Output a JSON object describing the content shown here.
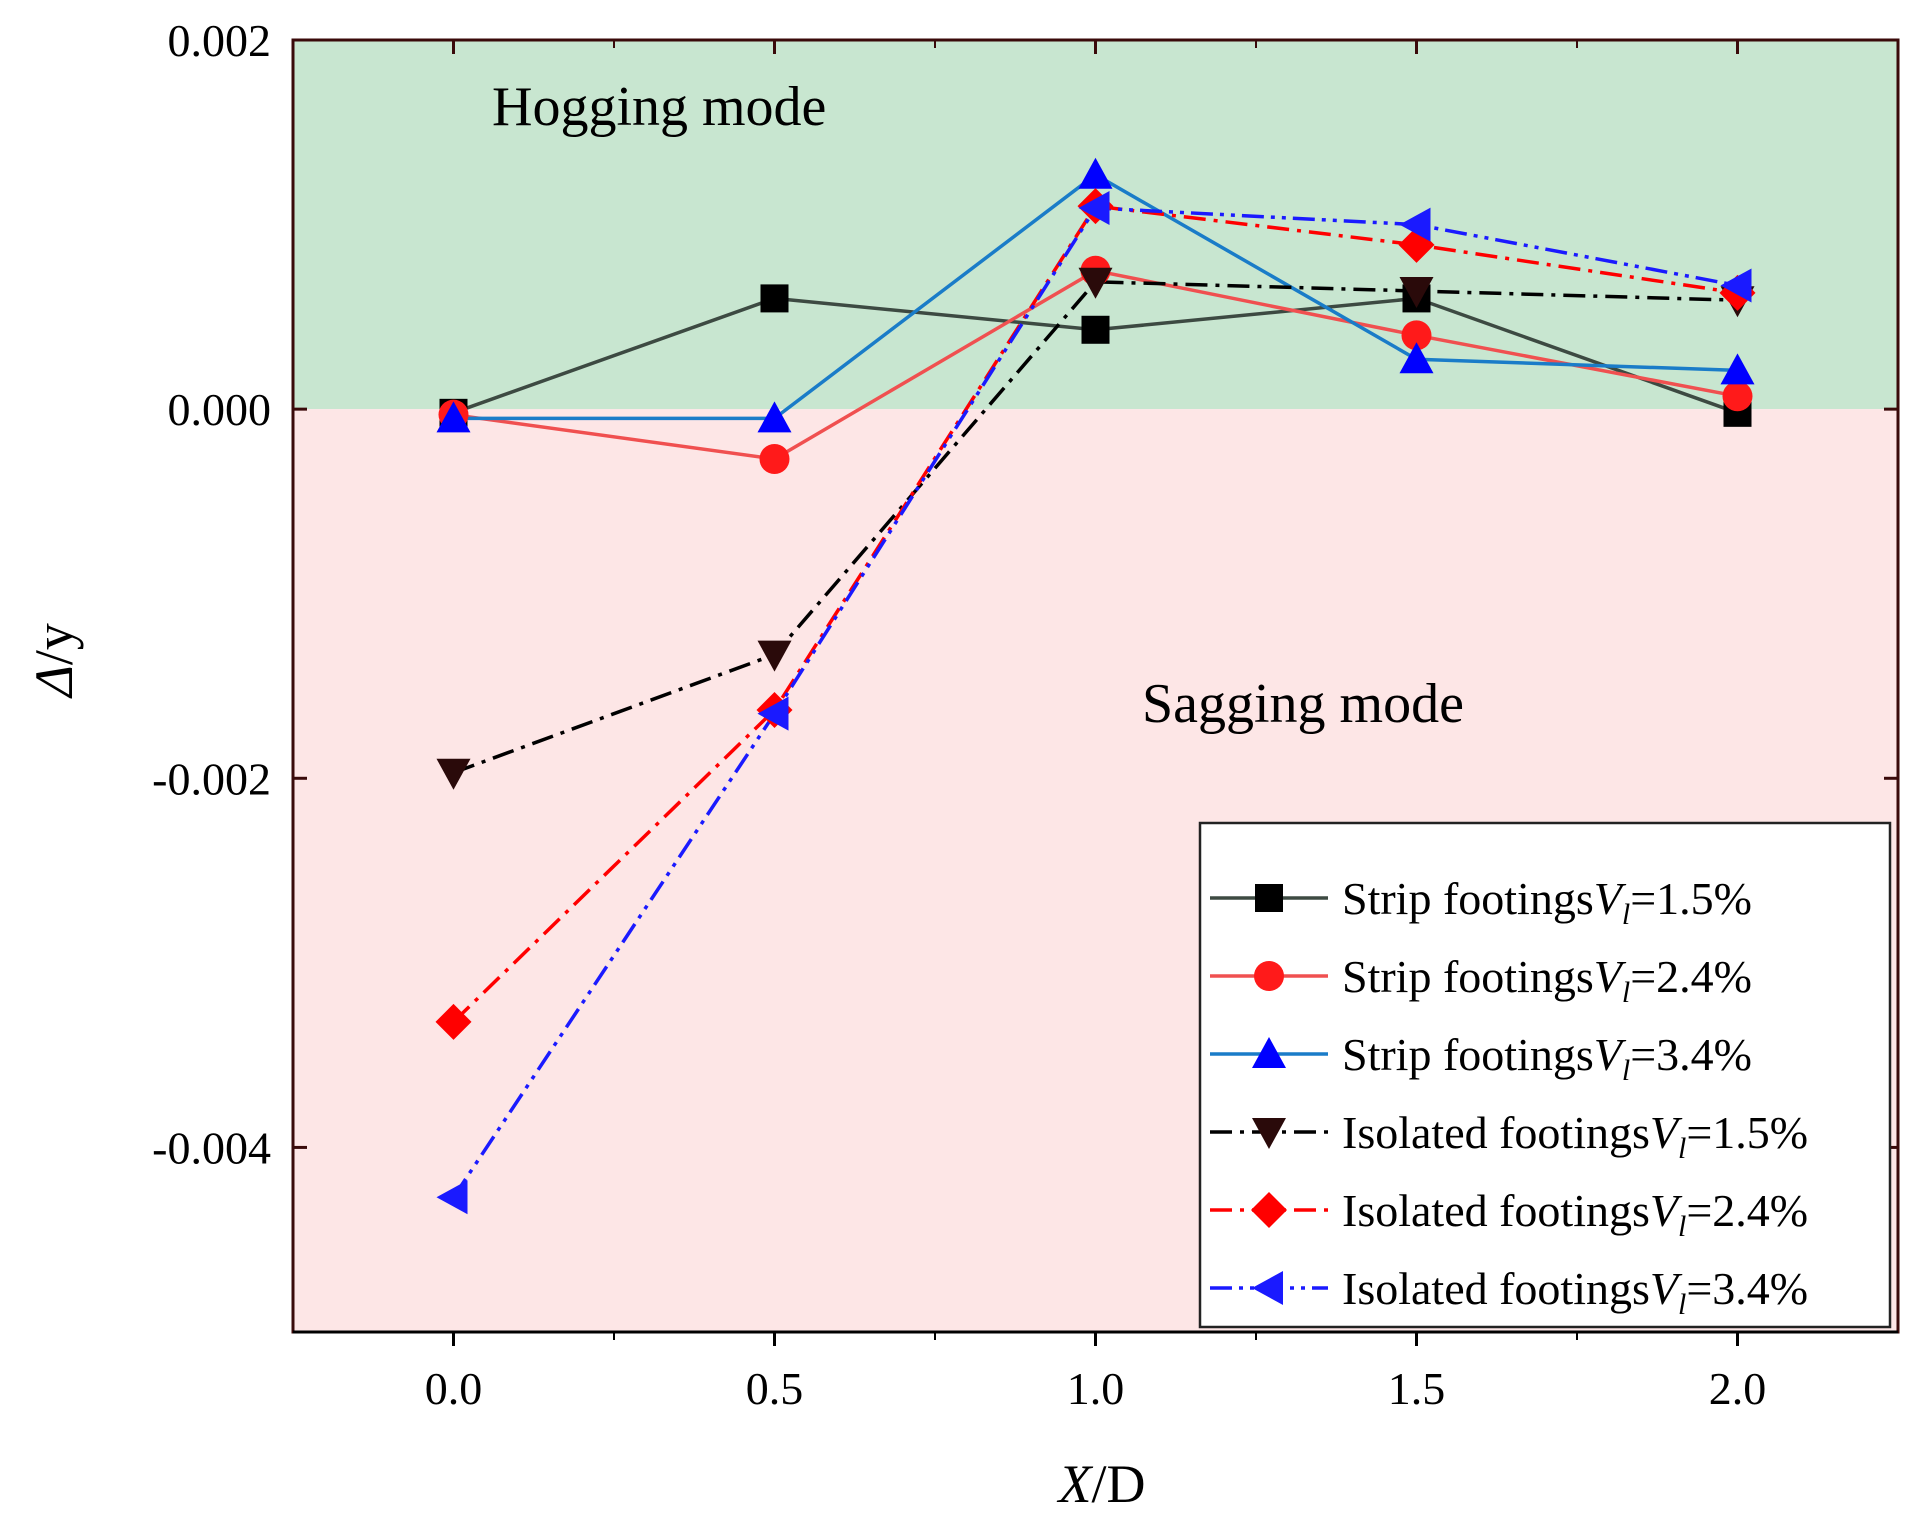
{
  "chart_data": {
    "type": "line",
    "title": "",
    "xlabel": {
      "italic": "X",
      "rest": "/D"
    },
    "ylabel": {
      "italic": "Δ",
      "rest": "/y"
    },
    "xlim": [
      -0.25,
      2.25
    ],
    "ylim": [
      -0.005,
      0.002
    ],
    "x_ticks": [
      0.0,
      0.5,
      1.0,
      1.5,
      2.0
    ],
    "x_tick_labels": [
      "0.0",
      "0.5",
      "1.0",
      "1.5",
      "2.0"
    ],
    "y_ticks": [
      0.002,
      0.0,
      -0.002,
      -0.004
    ],
    "y_tick_labels": [
      "0.002",
      "0.000",
      "-0.002",
      "-0.004"
    ],
    "regions": [
      {
        "name": "hogging",
        "label": "Hogging mode",
        "from": 0.0,
        "to": 0.002,
        "color": "#c8e6d0"
      },
      {
        "name": "sagging",
        "label": "Sagging mode",
        "from": -0.005,
        "to": 0.0,
        "color": "#fde6e6"
      }
    ],
    "legend_placement": "bottom-right",
    "x": [
      0.0,
      0.5,
      1.0,
      1.5,
      2.0
    ],
    "series": [
      {
        "name": "Strip footings",
        "vl": "1.5%",
        "color": "#3d4a42",
        "marker": "square",
        "marker_color": "#000000",
        "dash": "solid",
        "values": [
          -2e-05,
          0.0006,
          0.00043,
          0.0006,
          -2e-05
        ]
      },
      {
        "name": "Strip footings",
        "vl": "2.4%",
        "color": "#f05050",
        "marker": "circle",
        "marker_color": "#ff1a1a",
        "dash": "solid",
        "values": [
          -3e-05,
          -0.00027,
          0.00075,
          0.0004,
          7e-05
        ]
      },
      {
        "name": "Strip footings",
        "vl": "3.4%",
        "color": "#1a7cc8",
        "marker": "triangle-up",
        "marker_color": "#0000ff",
        "dash": "solid",
        "values": [
          -5e-05,
          -5e-05,
          0.00127,
          0.00027,
          0.00021
        ]
      },
      {
        "name": "Isolated footings",
        "vl": "1.5%",
        "color": "#000000",
        "marker": "triangle-down",
        "marker_color": "#2a0a0a",
        "dash": "dashdot",
        "values": [
          -0.00197,
          -0.00133,
          0.00069,
          0.00064,
          0.00059
        ]
      },
      {
        "name": "Isolated footings",
        "vl": "2.4%",
        "color": "#ff0000",
        "marker": "diamond",
        "marker_color": "#ff0000",
        "dash": "dashdot",
        "values": [
          -0.00332,
          -0.00163,
          0.0011,
          0.00089,
          0.00063
        ]
      },
      {
        "name": "Isolated footings",
        "vl": "3.4%",
        "color": "#1a1aff",
        "marker": "triangle-left",
        "marker_color": "#1a1aff",
        "dash": "dashdotdot",
        "values": [
          -0.00427,
          -0.00165,
          0.00109,
          0.001,
          0.00067
        ]
      }
    ]
  }
}
